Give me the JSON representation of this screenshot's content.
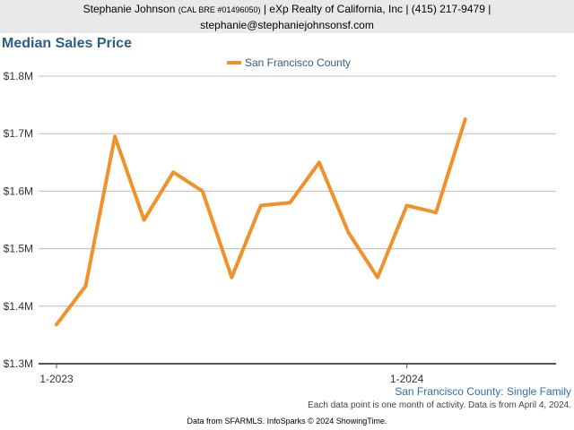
{
  "header": {
    "agent_name": "Stephanie Johnson",
    "license": "(CAL BRE #01496050)",
    "brokerage_line": "| eXp Realty of California, Inc | (415) 217-9479 |",
    "email": "stephanie@stephaniejohnsonsf.com"
  },
  "footer": {
    "series_note": "San Francisco County: Single Family",
    "activity_note": "Each data point is one month of activity. Data is from April 4, 2024.",
    "source_note": "Data from SFARMLS. InfoSparks © 2024 ShowingTime."
  },
  "colors": {
    "line": "#f0912a",
    "title": "#2e5d84",
    "grid": "#bbbbbb",
    "axis": "#555555",
    "header_bg": "#e9e9e9"
  },
  "chart_data": {
    "type": "line",
    "title": "Median Sales Price",
    "xlabel": "",
    "ylabel": "",
    "x": [
      "2023-01",
      "2023-02",
      "2023-03",
      "2023-04",
      "2023-05",
      "2023-06",
      "2023-07",
      "2023-08",
      "2023-09",
      "2023-10",
      "2023-11",
      "2023-12",
      "2024-01",
      "2024-02",
      "2024-03"
    ],
    "x_tick_labels": [
      {
        "x": "2023-01",
        "label": "1-2023"
      },
      {
        "x": "2024-01",
        "label": "1-2024"
      }
    ],
    "series": [
      {
        "name": "San Francisco County",
        "values": [
          1368000,
          1435000,
          1695000,
          1550000,
          1633000,
          1600000,
          1450000,
          1575000,
          1580000,
          1650000,
          1528000,
          1450000,
          1575000,
          1563000,
          1725000
        ]
      }
    ],
    "ylim": [
      1300000,
      1800000
    ],
    "y_ticks": [
      {
        "value": 1300000,
        "label": "$1.3M"
      },
      {
        "value": 1400000,
        "label": "$1.4M"
      },
      {
        "value": 1500000,
        "label": "$1.5M"
      },
      {
        "value": 1600000,
        "label": "$1.6M"
      },
      {
        "value": 1700000,
        "label": "$1.7M"
      },
      {
        "value": 1800000,
        "label": "$1.8M"
      }
    ],
    "grid": true,
    "legend_position": "top-center"
  }
}
